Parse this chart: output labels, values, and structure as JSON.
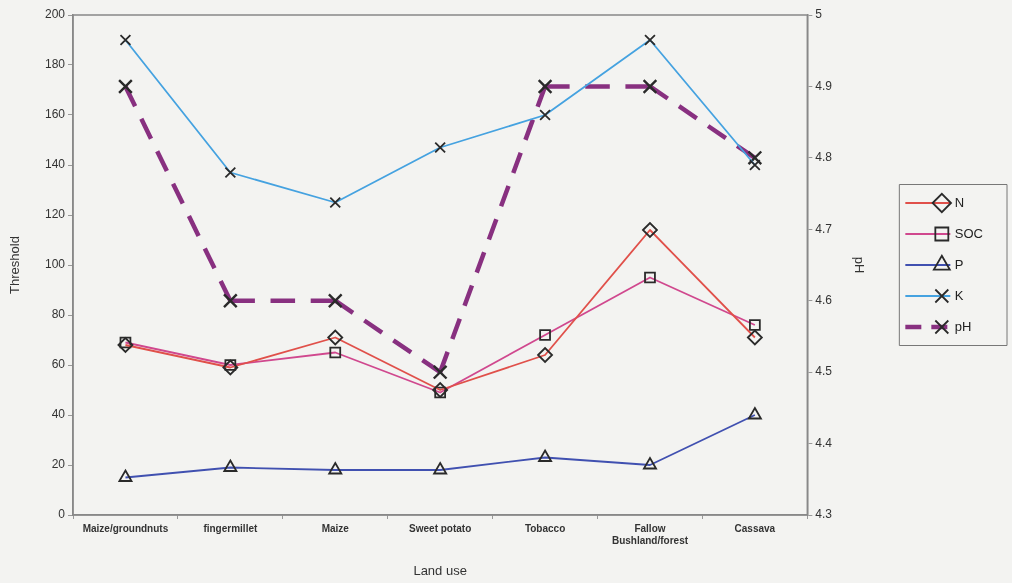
{
  "chart_data": {
    "type": "line",
    "xlabel": "Land use",
    "ylabel": "Threshold",
    "y2label": "pH",
    "categories": [
      "Maize/groundnuts",
      "fingermillet",
      "Maize",
      "Sweet potato",
      "Tobacco",
      "Fallow\nBushland/forest",
      "Cassava"
    ],
    "series": [
      {
        "name": "N",
        "color": "#e0504a",
        "marker": "diamond",
        "values": [
          68,
          59,
          71,
          50,
          64,
          114,
          71
        ]
      },
      {
        "name": "SOC",
        "color": "#d0488e",
        "marker": "square",
        "values": [
          69,
          60,
          65,
          49,
          72,
          95,
          76
        ]
      },
      {
        "name": "P",
        "color": "#4050b0",
        "marker": "triangle",
        "values": [
          15,
          19,
          18,
          18,
          23,
          20,
          40
        ]
      },
      {
        "name": "K",
        "color": "#45a2e0",
        "marker": "cross",
        "values": [
          190,
          137,
          125,
          147,
          160,
          190,
          140
        ]
      },
      {
        "name": "pH",
        "color": "#883080",
        "marker": "cross",
        "line_style": "dashed",
        "axis": "y2",
        "values": [
          4.9,
          4.6,
          4.6,
          4.5,
          4.9,
          4.9,
          4.8
        ]
      }
    ],
    "ylim": [
      0,
      200
    ],
    "yticks": [
      0,
      20,
      40,
      60,
      80,
      100,
      120,
      140,
      160,
      180,
      200
    ],
    "y2lim": [
      4.3,
      5
    ],
    "y2ticks": [
      4.3,
      4.4,
      4.5,
      4.6,
      4.7,
      4.8,
      4.9,
      5
    ],
    "legend": "right",
    "line_style": "solid"
  }
}
